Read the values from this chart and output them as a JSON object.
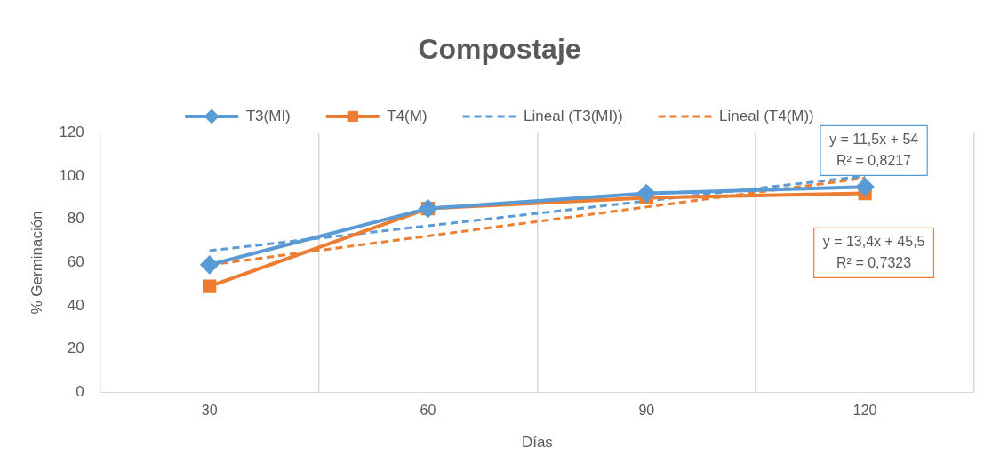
{
  "chart_data": {
    "type": "line",
    "title": "Compostaje",
    "xlabel": "Días",
    "ylabel": "% Germinación",
    "categories": [
      "30",
      "60",
      "90",
      "120"
    ],
    "series": [
      {
        "name": "T3(MI)",
        "color": "#5b9bd5",
        "values": [
          59,
          85,
          92,
          95
        ],
        "marker": "diamond",
        "line_style": "solid"
      },
      {
        "name": "T4(M)",
        "color": "#ed7d31",
        "values": [
          49,
          85,
          90,
          92
        ],
        "marker": "square",
        "line_style": "solid"
      },
      {
        "name": "Lineal (T3(MI))",
        "color": "#5b9bd5",
        "values": [
          65.5,
          77,
          88.5,
          100
        ],
        "marker": "none",
        "line_style": "dashed"
      },
      {
        "name": "Lineal (T4(M))",
        "color": "#ed7d31",
        "values": [
          58.9,
          72.3,
          85.7,
          99.1
        ],
        "marker": "none",
        "line_style": "dashed"
      }
    ],
    "ylim": [
      0,
      120
    ],
    "yticks": [
      0,
      20,
      40,
      60,
      80,
      100,
      120
    ],
    "grid": "x",
    "legend": "top",
    "annotations": [
      "y = 11,5x + 54\nR² = 0,8217",
      "y = 13,4x + 45,5\nR² = 0,7323"
    ]
  }
}
